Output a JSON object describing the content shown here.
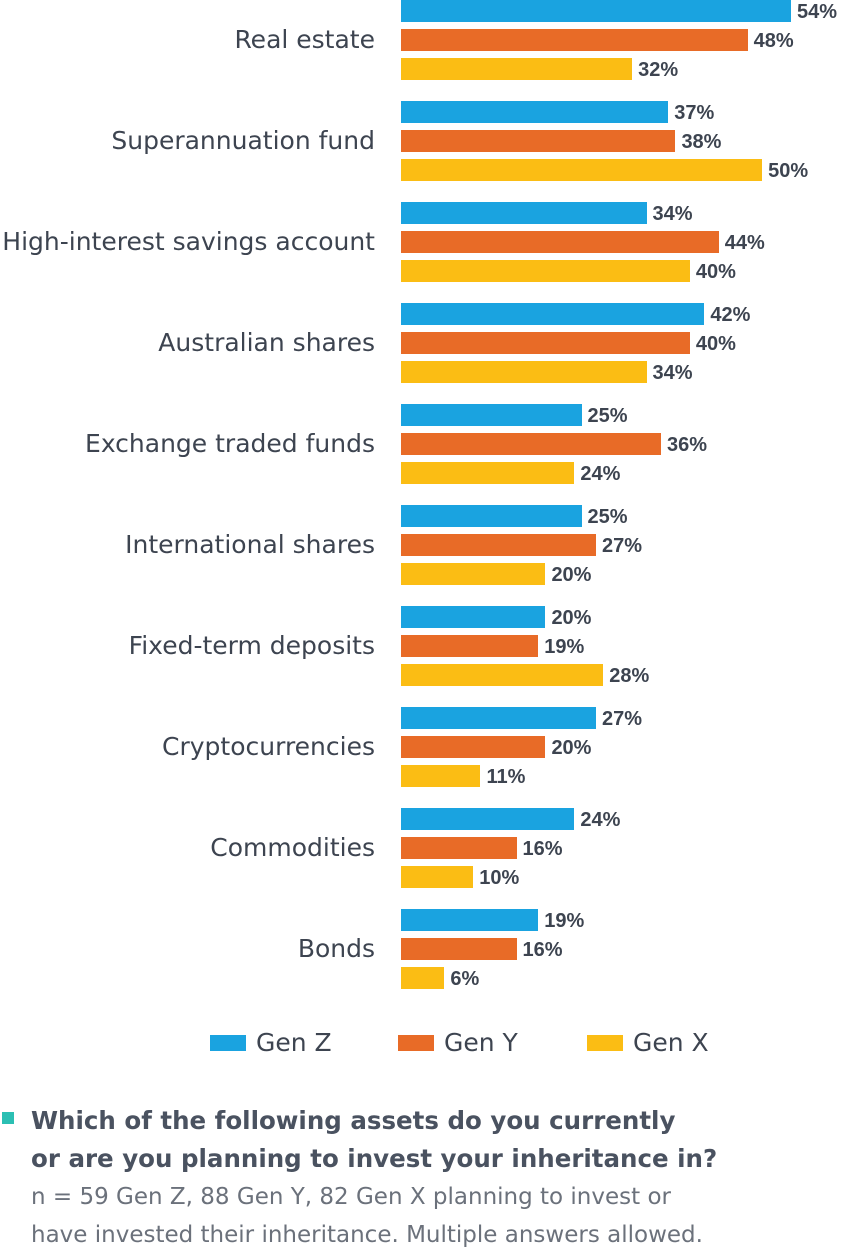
{
  "chart_data": {
    "type": "bar",
    "orientation": "horizontal",
    "categories": [
      "Real estate",
      "Superannuation fund",
      "High-interest savings account",
      "Australian shares",
      "Exchange traded funds",
      "International shares",
      "Fixed-term deposits",
      "Cryptocurrencies",
      "Commodities",
      "Bonds"
    ],
    "series": [
      {
        "name": "Gen Z",
        "color": "#1aa3e0",
        "values": [
          54,
          37,
          34,
          42,
          25,
          25,
          20,
          27,
          24,
          19
        ]
      },
      {
        "name": "Gen Y",
        "color": "#e86b27",
        "values": [
          48,
          38,
          44,
          40,
          36,
          27,
          19,
          20,
          16,
          16
        ]
      },
      {
        "name": "Gen X",
        "color": "#fbbd14",
        "values": [
          32,
          50,
          40,
          34,
          24,
          20,
          28,
          11,
          10,
          6
        ]
      }
    ],
    "value_suffix": "%",
    "legend_position": "bottom",
    "grid": false
  },
  "footnote": {
    "question_line1": "Which of the following assets do you currently",
    "question_line2": "or are you planning to invest your inheritance in?",
    "note_line1": "n = 59 Gen Z, 88 Gen Y, 82 Gen X planning to invest or",
    "note_line2": "have invested their inheritance. Multiple answers allowed."
  }
}
